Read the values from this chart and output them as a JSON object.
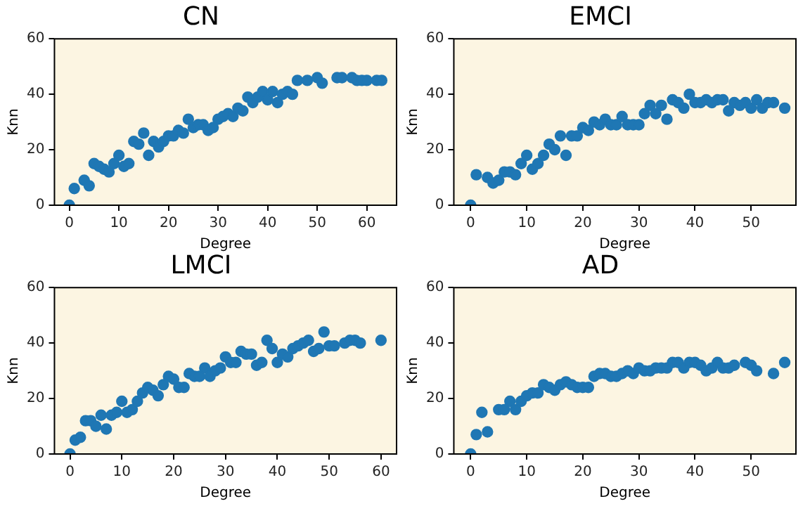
{
  "chart_data": [
    {
      "type": "scatter",
      "title": "CN",
      "xlabel": "Degree",
      "ylabel": "Knn",
      "xlim": [
        -3,
        66
      ],
      "xticks": [
        0,
        10,
        20,
        30,
        40,
        50,
        60
      ],
      "ylim": [
        0,
        60
      ],
      "yticks": [
        0,
        20,
        40,
        60
      ],
      "grid": false,
      "legend": false,
      "marker": "circle",
      "series": [
        {
          "color": "#1f77b4",
          "x": [
            0,
            1,
            3,
            4,
            5,
            6,
            7,
            8,
            9,
            10,
            11,
            12,
            13,
            14,
            15,
            16,
            17,
            18,
            19,
            20,
            21,
            22,
            23,
            24,
            25,
            26,
            27,
            28,
            29,
            30,
            31,
            32,
            33,
            34,
            35,
            36,
            37,
            38,
            39,
            40,
            41,
            42,
            43,
            44,
            45,
            46,
            48,
            50,
            51,
            54,
            55,
            57,
            58,
            59,
            60,
            62,
            63
          ],
          "values": [
            0,
            6,
            9,
            7,
            15,
            14,
            13,
            12,
            15,
            18,
            14,
            15,
            23,
            22,
            26,
            18,
            23,
            21,
            23,
            25,
            25,
            27,
            26,
            31,
            28,
            29,
            29,
            27,
            28,
            31,
            32,
            33,
            32,
            35,
            34,
            39,
            37,
            39,
            41,
            38,
            41,
            37,
            40,
            41,
            40,
            45,
            45,
            46,
            44,
            46,
            46,
            46,
            45,
            45,
            45,
            45,
            45
          ]
        }
      ]
    },
    {
      "type": "scatter",
      "title": "EMCI",
      "xlabel": "Degree",
      "ylabel": "Knn",
      "xlim": [
        -3,
        58
      ],
      "xticks": [
        0,
        10,
        20,
        30,
        40,
        50
      ],
      "ylim": [
        0,
        60
      ],
      "yticks": [
        0,
        20,
        40,
        60
      ],
      "grid": false,
      "legend": false,
      "marker": "circle",
      "series": [
        {
          "color": "#1f77b4",
          "x": [
            0,
            1,
            3,
            4,
            5,
            6,
            7,
            8,
            9,
            10,
            11,
            12,
            13,
            14,
            15,
            16,
            17,
            18,
            19,
            20,
            21,
            22,
            23,
            24,
            25,
            26,
            27,
            28,
            29,
            30,
            31,
            32,
            33,
            34,
            35,
            36,
            37,
            38,
            39,
            40,
            41,
            42,
            43,
            44,
            45,
            46,
            47,
            48,
            49,
            50,
            51,
            52,
            53,
            54,
            56
          ],
          "values": [
            0,
            11,
            10,
            8,
            9,
            12,
            12,
            11,
            15,
            18,
            13,
            15,
            18,
            22,
            20,
            25,
            18,
            25,
            25,
            28,
            27,
            30,
            29,
            31,
            29,
            29,
            32,
            29,
            29,
            29,
            33,
            36,
            33,
            36,
            31,
            38,
            37,
            35,
            40,
            37,
            37,
            38,
            37,
            38,
            38,
            34,
            37,
            36,
            37,
            35,
            38,
            35,
            37,
            37,
            35
          ]
        }
      ]
    },
    {
      "type": "scatter",
      "title": "LMCI",
      "xlabel": "Degree",
      "ylabel": "Knn",
      "xlim": [
        -3,
        63
      ],
      "xticks": [
        0,
        10,
        20,
        30,
        40,
        50,
        60
      ],
      "ylim": [
        0,
        60
      ],
      "yticks": [
        0,
        20,
        40,
        60
      ],
      "grid": false,
      "legend": false,
      "marker": "circle",
      "series": [
        {
          "color": "#1f77b4",
          "x": [
            0,
            1,
            2,
            3,
            4,
            5,
            6,
            7,
            8,
            9,
            10,
            11,
            12,
            13,
            14,
            15,
            16,
            17,
            18,
            19,
            20,
            21,
            22,
            23,
            24,
            25,
            26,
            27,
            28,
            29,
            30,
            31,
            32,
            33,
            34,
            35,
            36,
            37,
            38,
            39,
            40,
            41,
            42,
            43,
            44,
            45,
            46,
            47,
            48,
            49,
            50,
            51,
            53,
            54,
            55,
            56,
            60
          ],
          "values": [
            0,
            5,
            6,
            12,
            12,
            10,
            14,
            9,
            14,
            15,
            19,
            15,
            16,
            19,
            22,
            24,
            23,
            21,
            25,
            28,
            27,
            24,
            24,
            29,
            28,
            28,
            31,
            28,
            30,
            31,
            35,
            33,
            33,
            37,
            36,
            36,
            32,
            33,
            41,
            38,
            33,
            36,
            35,
            38,
            39,
            40,
            41,
            37,
            38,
            44,
            39,
            39,
            40,
            41,
            41,
            40,
            41
          ]
        }
      ]
    },
    {
      "type": "scatter",
      "title": "AD",
      "xlabel": "Degree",
      "ylabel": "Knn",
      "xlim": [
        -3,
        58
      ],
      "xticks": [
        0,
        10,
        20,
        30,
        40,
        50
      ],
      "ylim": [
        0,
        60
      ],
      "yticks": [
        0,
        20,
        40,
        60
      ],
      "grid": false,
      "legend": false,
      "marker": "circle",
      "series": [
        {
          "color": "#1f77b4",
          "x": [
            0,
            1,
            2,
            3,
            5,
            6,
            7,
            8,
            9,
            10,
            11,
            12,
            13,
            14,
            15,
            16,
            17,
            18,
            19,
            20,
            21,
            22,
            23,
            24,
            25,
            26,
            27,
            28,
            29,
            30,
            31,
            32,
            33,
            34,
            35,
            36,
            37,
            38,
            39,
            40,
            41,
            42,
            43,
            44,
            45,
            46,
            47,
            49,
            50,
            51,
            54,
            56
          ],
          "values": [
            0,
            7,
            15,
            8,
            16,
            16,
            19,
            16,
            19,
            21,
            22,
            22,
            25,
            24,
            23,
            25,
            26,
            25,
            24,
            24,
            24,
            28,
            29,
            29,
            28,
            28,
            29,
            30,
            29,
            31,
            30,
            30,
            31,
            31,
            31,
            33,
            33,
            31,
            33,
            33,
            32,
            30,
            31,
            33,
            31,
            31,
            32,
            33,
            32,
            30,
            29,
            33
          ]
        }
      ]
    }
  ]
}
